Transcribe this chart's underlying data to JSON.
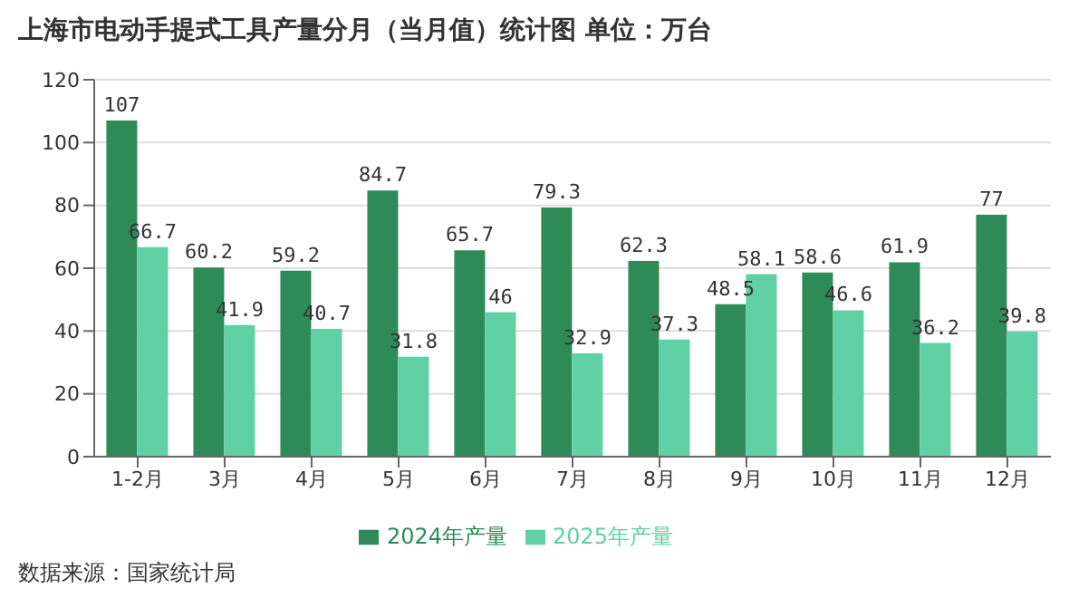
{
  "chart_data": {
    "type": "bar",
    "title": "上海市电动手提式工具产量分月（当月值）统计图 单位：万台",
    "categories": [
      "1-2月",
      "3月",
      "4月",
      "5月",
      "6月",
      "7月",
      "8月",
      "9月",
      "10月",
      "11月",
      "12月"
    ],
    "series": [
      {
        "name": "2024年产量",
        "color": "#2e8b57",
        "values": [
          107,
          60.2,
          59.2,
          84.7,
          65.7,
          79.3,
          62.3,
          48.5,
          58.6,
          61.9,
          77
        ]
      },
      {
        "name": "2025年产量",
        "color": "#5fd1a5",
        "values": [
          66.7,
          41.9,
          40.7,
          31.8,
          46,
          32.9,
          37.3,
          58.1,
          46.6,
          36.2,
          39.8
        ]
      }
    ],
    "ylim": [
      0,
      120
    ],
    "yticks": [
      0,
      20,
      40,
      60,
      80,
      100,
      120
    ],
    "grid": "y",
    "legend": "bottom",
    "data_labels": true,
    "annotations": [
      "数据来源：国家统计局"
    ]
  }
}
